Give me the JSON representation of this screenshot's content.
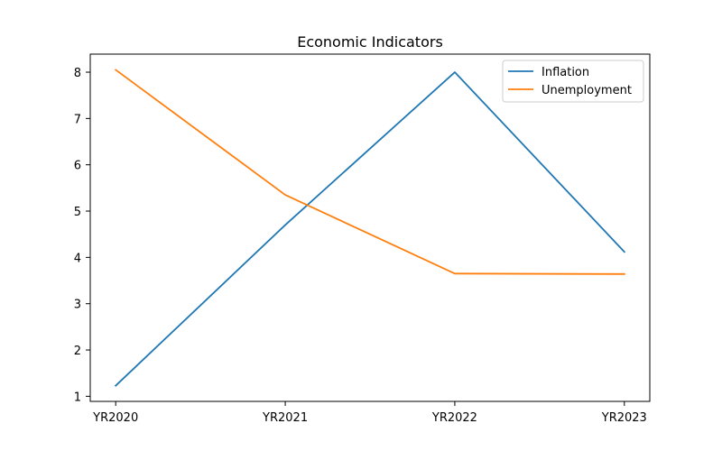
{
  "chart_data": {
    "type": "line",
    "title": "Economic Indicators",
    "xlabel": "",
    "ylabel": "",
    "categories": [
      "YR2020",
      "YR2021",
      "YR2022",
      "YR2023"
    ],
    "series": [
      {
        "name": "Inflation",
        "color": "#1f77b4",
        "values": [
          1.23,
          4.7,
          8.0,
          4.12
        ]
      },
      {
        "name": "Unemployment",
        "color": "#ff7f0e",
        "values": [
          8.05,
          5.35,
          3.65,
          3.64
        ]
      }
    ],
    "yticks": [
      1,
      2,
      3,
      4,
      5,
      6,
      7,
      8
    ],
    "ylim": [
      0.89,
      8.39
    ],
    "grid": false,
    "legend": "top-right"
  }
}
